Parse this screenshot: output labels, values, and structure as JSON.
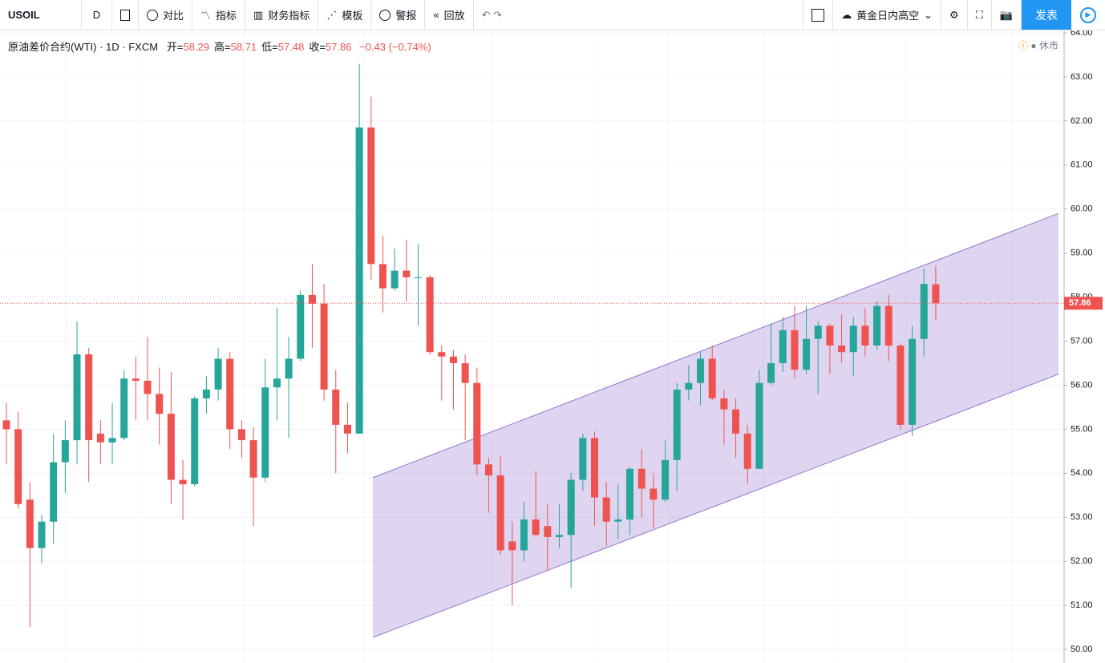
{
  "toolbar": {
    "symbol": "USOIL",
    "interval": "D",
    "items": [
      "对比",
      "指标",
      "财务指标",
      "模板",
      "警报",
      "回放"
    ],
    "layout_name": "黄金日内高空",
    "publish": "发表"
  },
  "chart_data": {
    "type": "candlestick",
    "title": "原油差价合约(WTI) · 1D · FXCM",
    "ohlc_labels": [
      "开=",
      "高=",
      "低=",
      "收="
    ],
    "change": "−0.43 (−0.74%)",
    "status": "休市",
    "up_color": "#26a69a",
    "down_color": "#ef5350",
    "grid": true,
    "ylim": [
      50,
      64
    ],
    "yticks": [
      {
        "value": 50,
        "label": "50.00"
      },
      {
        "value": 51,
        "label": "51.00"
      },
      {
        "value": 52,
        "label": "52.00"
      },
      {
        "value": 53,
        "label": "53.00"
      },
      {
        "value": 54,
        "label": "54.00"
      },
      {
        "value": 55,
        "label": "55.00"
      },
      {
        "value": 56,
        "label": "56.00"
      },
      {
        "value": 57,
        "label": "57.00"
      },
      {
        "value": 58,
        "label": "58.00"
      },
      {
        "value": 59,
        "label": "59.00"
      },
      {
        "value": 60,
        "label": "60.00"
      },
      {
        "value": 61,
        "label": "61.00"
      },
      {
        "value": 62,
        "label": "62.00"
      },
      {
        "value": 63,
        "label": "63.00"
      },
      {
        "value": 64,
        "label": "64.00"
      }
    ],
    "last_price": 57.86,
    "channel": {
      "color": "#9575cd",
      "upper": [
        53.9,
        59.9
      ],
      "lower": [
        50.27,
        56.25
      ]
    },
    "candles": [
      [
        55.2,
        55.6,
        54.2,
        55.0
      ],
      [
        55.0,
        55.4,
        53.2,
        53.3
      ],
      [
        53.4,
        53.8,
        50.5,
        52.3
      ],
      [
        52.3,
        53.05,
        51.95,
        52.9
      ],
      [
        52.9,
        54.9,
        52.4,
        54.25
      ],
      [
        54.25,
        55.2,
        53.55,
        54.75
      ],
      [
        54.75,
        57.45,
        54.2,
        56.7
      ],
      [
        56.7,
        56.85,
        53.8,
        54.75
      ],
      [
        54.9,
        55.2,
        54.2,
        54.7
      ],
      [
        54.7,
        55.6,
        54.2,
        54.8
      ],
      [
        54.8,
        56.35,
        54.75,
        56.15
      ],
      [
        56.15,
        56.65,
        55.2,
        56.1
      ],
      [
        56.1,
        57.1,
        55.2,
        55.8
      ],
      [
        55.8,
        56.4,
        54.65,
        55.35
      ],
      [
        55.35,
        56.3,
        53.3,
        53.85
      ],
      [
        53.85,
        54.3,
        52.95,
        53.75
      ],
      [
        53.75,
        55.75,
        53.7,
        55.7
      ],
      [
        55.7,
        56.2,
        55.35,
        55.9
      ],
      [
        55.9,
        56.85,
        55.65,
        56.6
      ],
      [
        56.6,
        56.75,
        54.55,
        55.0
      ],
      [
        55.0,
        55.2,
        54.35,
        54.75
      ],
      [
        54.75,
        55.05,
        52.8,
        53.9
      ],
      [
        53.9,
        56.6,
        53.8,
        55.95
      ],
      [
        55.95,
        57.75,
        55.2,
        56.15
      ],
      [
        56.15,
        57.1,
        54.8,
        56.6
      ],
      [
        56.6,
        58.15,
        56.55,
        58.05
      ],
      [
        58.05,
        58.75,
        56.85,
        57.85
      ],
      [
        57.85,
        58.3,
        55.65,
        55.9
      ],
      [
        55.9,
        56.35,
        54.0,
        55.1
      ],
      [
        55.1,
        55.6,
        54.45,
        54.9
      ],
      [
        54.9,
        63.3,
        54.9,
        61.85
      ],
      [
        61.85,
        62.55,
        58.4,
        58.75
      ],
      [
        58.75,
        59.4,
        57.65,
        58.2
      ],
      [
        58.2,
        59.1,
        58.15,
        58.6
      ],
      [
        58.6,
        59.3,
        57.9,
        58.45
      ],
      [
        58.43,
        59.2,
        57.35,
        58.45
      ],
      [
        58.45,
        58.5,
        56.7,
        56.75
      ],
      [
        56.75,
        56.9,
        55.65,
        56.65
      ],
      [
        56.65,
        56.8,
        55.45,
        56.5
      ],
      [
        56.5,
        56.7,
        54.75,
        56.05
      ],
      [
        56.05,
        56.4,
        53.95,
        54.2
      ],
      [
        54.2,
        54.35,
        53.1,
        53.95
      ],
      [
        53.95,
        54.4,
        52.15,
        52.25
      ],
      [
        52.45,
        52.9,
        51.0,
        52.25
      ],
      [
        52.25,
        53.35,
        52.0,
        52.95
      ],
      [
        52.95,
        54.05,
        52.55,
        52.6
      ],
      [
        52.8,
        53.3,
        51.8,
        52.55
      ],
      [
        52.55,
        53.3,
        52.3,
        52.6
      ],
      [
        52.6,
        54.0,
        51.4,
        53.85
      ],
      [
        53.85,
        54.9,
        53.6,
        54.8
      ],
      [
        54.8,
        54.95,
        52.8,
        53.45
      ],
      [
        53.45,
        53.8,
        52.35,
        52.9
      ],
      [
        52.9,
        53.75,
        52.5,
        52.95
      ],
      [
        52.95,
        54.15,
        52.6,
        54.1
      ],
      [
        54.1,
        54.55,
        53.0,
        53.65
      ],
      [
        53.65,
        54.0,
        52.75,
        53.4
      ],
      [
        53.4,
        54.75,
        53.35,
        54.3
      ],
      [
        54.3,
        56.05,
        53.6,
        55.9
      ],
      [
        55.9,
        56.45,
        55.65,
        56.05
      ],
      [
        56.05,
        56.75,
        55.55,
        56.6
      ],
      [
        56.6,
        56.9,
        55.65,
        55.7
      ],
      [
        55.7,
        55.9,
        54.65,
        55.45
      ],
      [
        55.45,
        55.7,
        54.35,
        54.9
      ],
      [
        54.9,
        55.1,
        53.75,
        54.1
      ],
      [
        54.1,
        56.35,
        54.1,
        56.05
      ],
      [
        56.05,
        57.4,
        56.0,
        56.5
      ],
      [
        56.5,
        57.55,
        56.3,
        57.25
      ],
      [
        57.25,
        57.8,
        56.15,
        56.35
      ],
      [
        56.35,
        57.8,
        56.25,
        57.05
      ],
      [
        57.05,
        57.45,
        55.8,
        57.35
      ],
      [
        57.35,
        57.4,
        56.25,
        56.9
      ],
      [
        56.9,
        57.6,
        56.5,
        56.75
      ],
      [
        56.75,
        57.55,
        56.2,
        57.35
      ],
      [
        57.35,
        57.75,
        56.65,
        56.9
      ],
      [
        56.9,
        57.9,
        56.8,
        57.8
      ],
      [
        57.8,
        58.05,
        56.55,
        56.9
      ],
      [
        56.9,
        56.95,
        55.0,
        55.1
      ],
      [
        55.1,
        57.35,
        54.85,
        57.05
      ],
      [
        57.05,
        58.65,
        56.65,
        58.3
      ],
      [
        58.29,
        58.71,
        57.48,
        57.86
      ]
    ]
  }
}
